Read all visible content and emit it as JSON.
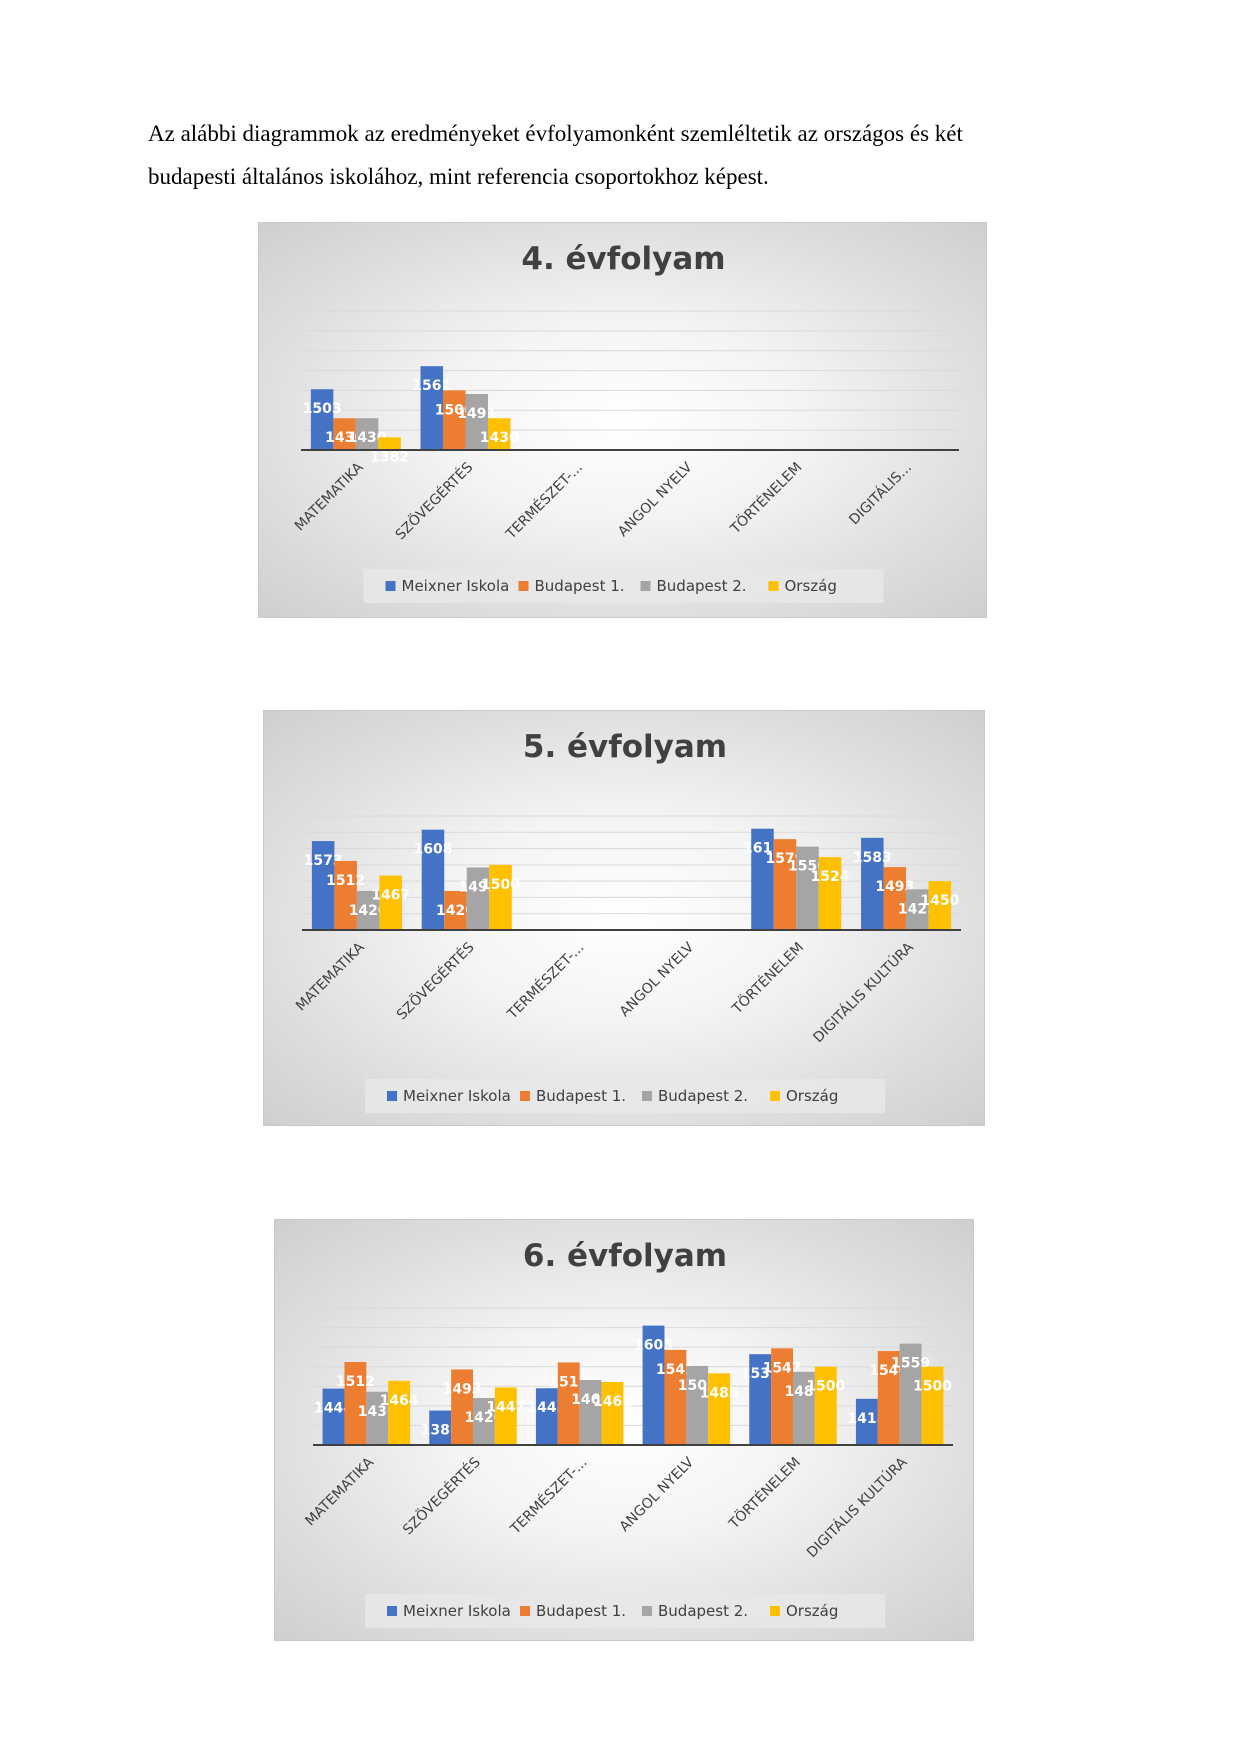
{
  "intro": {
    "line1": "Az alábbi diagrammok az eredményeket évfolyamonként szemléltetik az országos és két",
    "line2": "budapesti általános iskolához, mint referencia csoportokhoz képest."
  },
  "colors": {
    "series": [
      "#4472C4",
      "#ED7D31",
      "#A5A5A5",
      "#FFC000"
    ],
    "text": "#404040",
    "grid": "#d9d9d9"
  },
  "chart_data": [
    {
      "type": "bar",
      "title": "4. évfolyam",
      "categories": [
        "MATEMATIKA",
        "SZÖVEGÉRTÉS",
        "TERMÉSZET-...",
        "ANGOL NYELV",
        "TÖRTÉNELEM",
        "DIGITÁLIS..."
      ],
      "series": [
        {
          "name": "Meixner Iskola",
          "values": [
            1503,
            1561,
            null,
            null,
            null,
            null
          ]
        },
        {
          "name": "Budapest 1.",
          "values": [
            1430,
            1500,
            null,
            null,
            null,
            null
          ]
        },
        {
          "name": "Budapest 2.",
          "values": [
            1430,
            1491,
            null,
            null,
            null,
            null
          ]
        },
        {
          "name": "Ország",
          "values": [
            1382,
            1430,
            null,
            null,
            null,
            null
          ]
        }
      ],
      "ylim": [
        1350,
        1700
      ],
      "grid": true,
      "legend": "bottom"
    },
    {
      "type": "bar",
      "title": "5. évfolyam",
      "categories": [
        "MATEMATIKA",
        "SZÖVEGÉRTÉS",
        "TERMÉSZET-...",
        "ANGOL NYELV",
        "TÖRTÉNELEM",
        "DIGITÁLIS KULTÚRA"
      ],
      "series": [
        {
          "name": "Meixner Iskola",
          "values": [
            1573,
            1608,
            null,
            null,
            1611,
            1583
          ]
        },
        {
          "name": "Budapest 1.",
          "values": [
            1512,
            1420,
            null,
            null,
            1579,
            1493
          ]
        },
        {
          "name": "Budapest 2.",
          "values": [
            1420,
            1492,
            null,
            null,
            1556,
            1425
          ]
        },
        {
          "name": "Ország",
          "values": [
            1467,
            1500,
            null,
            null,
            1524,
            1450
          ]
        }
      ],
      "ylim": [
        1300,
        1650
      ],
      "grid": true,
      "legend": "bottom"
    },
    {
      "type": "bar",
      "title": "6. évfolyam",
      "categories": [
        "MATEMATIKA",
        "SZÖVEGÉRTÉS",
        "TERMÉSZET-...",
        "ANGOL NYELV",
        "TÖRTÉNELEM",
        "DIGITÁLIS KULTÚRA"
      ],
      "series": [
        {
          "name": "Meixner Iskola",
          "values": [
            1444,
            1388,
            1445,
            1605,
            1532,
            1418
          ]
        },
        {
          "name": "Budapest 1.",
          "values": [
            1512,
            1493,
            1511,
            1543,
            1547,
            1540
          ]
        },
        {
          "name": "Budapest 2.",
          "values": [
            1436,
            1420,
            1466,
            1502,
            1487,
            1559
          ]
        },
        {
          "name": "Ország",
          "values": [
            1464,
            1447,
            1461,
            1483,
            1500,
            1500
          ]
        }
      ],
      "ylim": [
        1300,
        1650
      ],
      "grid": true,
      "legend": "bottom"
    }
  ]
}
